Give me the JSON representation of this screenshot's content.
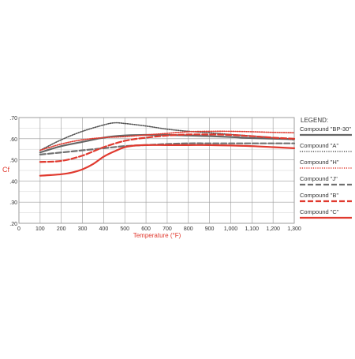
{
  "chart_data": {
    "type": "line",
    "ylabel": "Cf",
    "xlabel": "Temperature (°F)",
    "legend_title": "LEGEND:",
    "legend_position": "right",
    "grid": true,
    "xlim": [
      0,
      1300
    ],
    "ylim": [
      0.2,
      0.7
    ],
    "x_ticks": [
      0,
      100,
      200,
      300,
      400,
      500,
      600,
      700,
      800,
      900,
      1000,
      1100,
      1200,
      1300
    ],
    "x_tick_labels": [
      "0",
      "100",
      "200",
      "300",
      "400",
      "500",
      "600",
      "700",
      "800",
      "900",
      "1,000",
      "1,100",
      "1,200",
      "1,300"
    ],
    "y_ticks": [
      0.2,
      0.3,
      0.4,
      0.5,
      0.6,
      0.7
    ],
    "y_tick_labels": [
      ".20",
      ".30",
      ".40",
      ".50",
      ".60",
      ".70"
    ],
    "series": [
      {
        "name": "Compound \"BP-30\"",
        "color": "#666666",
        "dash": "solid",
        "x": [
          100,
          200,
          300,
          400,
          500,
          600,
          700,
          800,
          900,
          1000,
          1100,
          1200,
          1300
        ],
        "y": [
          0.535,
          0.565,
          0.585,
          0.605,
          0.615,
          0.618,
          0.618,
          0.615,
          0.612,
          0.608,
          0.603,
          0.6,
          0.598
        ]
      },
      {
        "name": "Compound \"A\"",
        "color": "#555555",
        "dash": "dotted",
        "x": [
          100,
          200,
          300,
          400,
          450,
          500,
          600,
          700,
          800,
          900,
          1000,
          1100,
          1200,
          1300
        ],
        "y": [
          0.545,
          0.595,
          0.635,
          0.665,
          0.675,
          0.672,
          0.66,
          0.645,
          0.635,
          0.628,
          0.62,
          0.613,
          0.605,
          0.595
        ]
      },
      {
        "name": "Compound \"H\"",
        "color": "#e03a2f",
        "dash": "dotted",
        "x": [
          100,
          200,
          300,
          400,
          500,
          600,
          700,
          800,
          900,
          1000,
          1100,
          1200,
          1300
        ],
        "y": [
          0.545,
          0.575,
          0.595,
          0.605,
          0.61,
          0.618,
          0.625,
          0.633,
          0.635,
          0.635,
          0.633,
          0.63,
          0.628
        ]
      },
      {
        "name": "Compound \"J\"",
        "color": "#707070",
        "dash": "dashed",
        "x": [
          100,
          200,
          300,
          400,
          500,
          600,
          700,
          800,
          900,
          1000,
          1100,
          1200,
          1300
        ],
        "y": [
          0.525,
          0.535,
          0.545,
          0.555,
          0.565,
          0.57,
          0.575,
          0.578,
          0.578,
          0.578,
          0.578,
          0.578,
          0.578
        ]
      },
      {
        "name": "Compound \"B\"",
        "color": "#e03a2f",
        "dash": "dashed",
        "x": [
          100,
          200,
          300,
          400,
          500,
          600,
          700,
          800,
          900,
          1000,
          1100,
          1200,
          1300
        ],
        "y": [
          0.49,
          0.495,
          0.52,
          0.56,
          0.59,
          0.605,
          0.615,
          0.62,
          0.62,
          0.618,
          0.612,
          0.605,
          0.6
        ]
      },
      {
        "name": "Compound \"C\"",
        "color": "#e03a2f",
        "dash": "solid",
        "x": [
          100,
          150,
          200,
          250,
          300,
          350,
          400,
          450,
          500,
          550,
          600,
          700,
          800,
          900,
          1000,
          1100,
          1200,
          1300
        ],
        "y": [
          0.425,
          0.428,
          0.432,
          0.44,
          0.455,
          0.48,
          0.515,
          0.54,
          0.56,
          0.568,
          0.57,
          0.57,
          0.57,
          0.57,
          0.568,
          0.565,
          0.56,
          0.555
        ]
      }
    ]
  }
}
